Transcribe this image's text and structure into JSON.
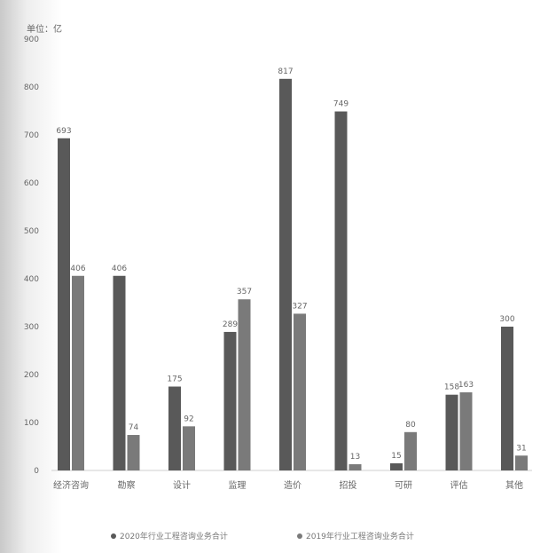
{
  "chart_data": {
    "type": "bar",
    "unit_label": "单位：亿",
    "categories": [
      "经济咨询",
      "勘察",
      "设计",
      "监理",
      "造价",
      "招投",
      "可研",
      "评估",
      "其他"
    ],
    "series": [
      {
        "name": "2020年行业工程咨询业务合计",
        "values": [
          693,
          406,
          175,
          289,
          817,
          749,
          15,
          158,
          300
        ],
        "color": "#595959"
      },
      {
        "name": "2019年行业工程咨询业务合计",
        "values": [
          406,
          74,
          92,
          357,
          327,
          13,
          80,
          163,
          31
        ],
        "color": "#7a7a7a"
      }
    ],
    "ylim": [
      0,
      900
    ],
    "yticks": [
      0,
      100,
      200,
      300,
      400,
      500,
      600,
      700,
      800,
      900
    ],
    "grid": false,
    "legend_position": "bottom"
  }
}
